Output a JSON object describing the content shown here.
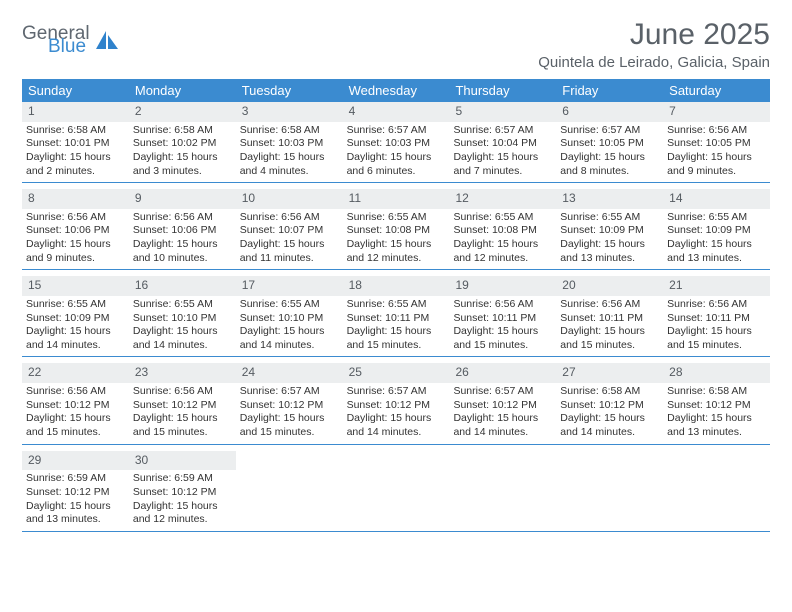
{
  "brand": {
    "line1": "General",
    "line2": "Blue",
    "logo_color": "#2f82cc",
    "gray": "#5f6770"
  },
  "title": "June 2025",
  "location": "Quintela de Leirado, Galicia, Spain",
  "colors": {
    "header_bg": "#3b8bd0",
    "header_text": "#ffffff",
    "daynum_bg": "#eceeef",
    "rule": "#3b8bd0",
    "body_text": "#333333"
  },
  "weekdays": [
    "Sunday",
    "Monday",
    "Tuesday",
    "Wednesday",
    "Thursday",
    "Friday",
    "Saturday"
  ],
  "days": [
    {
      "n": 1,
      "sunrise": "6:58 AM",
      "sunset": "10:01 PM",
      "daylight": "15 hours and 2 minutes."
    },
    {
      "n": 2,
      "sunrise": "6:58 AM",
      "sunset": "10:02 PM",
      "daylight": "15 hours and 3 minutes."
    },
    {
      "n": 3,
      "sunrise": "6:58 AM",
      "sunset": "10:03 PM",
      "daylight": "15 hours and 4 minutes."
    },
    {
      "n": 4,
      "sunrise": "6:57 AM",
      "sunset": "10:03 PM",
      "daylight": "15 hours and 6 minutes."
    },
    {
      "n": 5,
      "sunrise": "6:57 AM",
      "sunset": "10:04 PM",
      "daylight": "15 hours and 7 minutes."
    },
    {
      "n": 6,
      "sunrise": "6:57 AM",
      "sunset": "10:05 PM",
      "daylight": "15 hours and 8 minutes."
    },
    {
      "n": 7,
      "sunrise": "6:56 AM",
      "sunset": "10:05 PM",
      "daylight": "15 hours and 9 minutes."
    },
    {
      "n": 8,
      "sunrise": "6:56 AM",
      "sunset": "10:06 PM",
      "daylight": "15 hours and 9 minutes."
    },
    {
      "n": 9,
      "sunrise": "6:56 AM",
      "sunset": "10:06 PM",
      "daylight": "15 hours and 10 minutes."
    },
    {
      "n": 10,
      "sunrise": "6:56 AM",
      "sunset": "10:07 PM",
      "daylight": "15 hours and 11 minutes."
    },
    {
      "n": 11,
      "sunrise": "6:55 AM",
      "sunset": "10:08 PM",
      "daylight": "15 hours and 12 minutes."
    },
    {
      "n": 12,
      "sunrise": "6:55 AM",
      "sunset": "10:08 PM",
      "daylight": "15 hours and 12 minutes."
    },
    {
      "n": 13,
      "sunrise": "6:55 AM",
      "sunset": "10:09 PM",
      "daylight": "15 hours and 13 minutes."
    },
    {
      "n": 14,
      "sunrise": "6:55 AM",
      "sunset": "10:09 PM",
      "daylight": "15 hours and 13 minutes."
    },
    {
      "n": 15,
      "sunrise": "6:55 AM",
      "sunset": "10:09 PM",
      "daylight": "15 hours and 14 minutes."
    },
    {
      "n": 16,
      "sunrise": "6:55 AM",
      "sunset": "10:10 PM",
      "daylight": "15 hours and 14 minutes."
    },
    {
      "n": 17,
      "sunrise": "6:55 AM",
      "sunset": "10:10 PM",
      "daylight": "15 hours and 14 minutes."
    },
    {
      "n": 18,
      "sunrise": "6:55 AM",
      "sunset": "10:11 PM",
      "daylight": "15 hours and 15 minutes."
    },
    {
      "n": 19,
      "sunrise": "6:56 AM",
      "sunset": "10:11 PM",
      "daylight": "15 hours and 15 minutes."
    },
    {
      "n": 20,
      "sunrise": "6:56 AM",
      "sunset": "10:11 PM",
      "daylight": "15 hours and 15 minutes."
    },
    {
      "n": 21,
      "sunrise": "6:56 AM",
      "sunset": "10:11 PM",
      "daylight": "15 hours and 15 minutes."
    },
    {
      "n": 22,
      "sunrise": "6:56 AM",
      "sunset": "10:12 PM",
      "daylight": "15 hours and 15 minutes."
    },
    {
      "n": 23,
      "sunrise": "6:56 AM",
      "sunset": "10:12 PM",
      "daylight": "15 hours and 15 minutes."
    },
    {
      "n": 24,
      "sunrise": "6:57 AM",
      "sunset": "10:12 PM",
      "daylight": "15 hours and 15 minutes."
    },
    {
      "n": 25,
      "sunrise": "6:57 AM",
      "sunset": "10:12 PM",
      "daylight": "15 hours and 14 minutes."
    },
    {
      "n": 26,
      "sunrise": "6:57 AM",
      "sunset": "10:12 PM",
      "daylight": "15 hours and 14 minutes."
    },
    {
      "n": 27,
      "sunrise": "6:58 AM",
      "sunset": "10:12 PM",
      "daylight": "15 hours and 14 minutes."
    },
    {
      "n": 28,
      "sunrise": "6:58 AM",
      "sunset": "10:12 PM",
      "daylight": "15 hours and 13 minutes."
    },
    {
      "n": 29,
      "sunrise": "6:59 AM",
      "sunset": "10:12 PM",
      "daylight": "15 hours and 13 minutes."
    },
    {
      "n": 30,
      "sunrise": "6:59 AM",
      "sunset": "10:12 PM",
      "daylight": "15 hours and 12 minutes."
    }
  ],
  "labels": {
    "sunrise": "Sunrise:",
    "sunset": "Sunset:",
    "daylight": "Daylight:"
  },
  "layout": {
    "start_weekday": 0,
    "cells_per_row": 7,
    "total_cells": 35
  }
}
